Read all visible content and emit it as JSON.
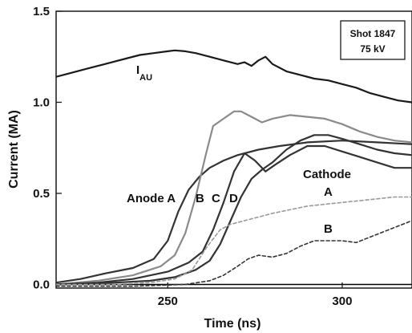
{
  "chart_data": {
    "type": "line",
    "title": "",
    "xlabel": "Time (ns)",
    "ylabel": "Current (MA)",
    "xlim": [
      218,
      320
    ],
    "ylim": [
      -0.02,
      1.5
    ],
    "x_ticks": [
      250,
      300
    ],
    "y_ticks": [
      0.0,
      0.5,
      1.0,
      1.5
    ],
    "y_tick_labels": [
      "0.0",
      "0.5",
      "1.0",
      "1.5"
    ],
    "grid": false,
    "legend": "none",
    "annotation_box": {
      "line1": "Shot 1847",
      "line2": "75 kV"
    },
    "series": [
      {
        "name": "I_AU",
        "label_main": "I",
        "label_sub": "AU",
        "color": "#1a1a1a",
        "dash": "solid",
        "points": [
          [
            218,
            1.14
          ],
          [
            222,
            1.16
          ],
          [
            226,
            1.18
          ],
          [
            230,
            1.2
          ],
          [
            234,
            1.22
          ],
          [
            238,
            1.24
          ],
          [
            242,
            1.26
          ],
          [
            246,
            1.27
          ],
          [
            250,
            1.28
          ],
          [
            252,
            1.285
          ],
          [
            255,
            1.28
          ],
          [
            258,
            1.27
          ],
          [
            262,
            1.25
          ],
          [
            266,
            1.23
          ],
          [
            270,
            1.21
          ],
          [
            272,
            1.22
          ],
          [
            274,
            1.2
          ],
          [
            276,
            1.23
          ],
          [
            278,
            1.25
          ],
          [
            280,
            1.21
          ],
          [
            284,
            1.17
          ],
          [
            288,
            1.15
          ],
          [
            292,
            1.13
          ],
          [
            296,
            1.12
          ],
          [
            300,
            1.1
          ],
          [
            304,
            1.08
          ],
          [
            308,
            1.05
          ],
          [
            312,
            1.03
          ],
          [
            316,
            1.01
          ],
          [
            320,
            1.0
          ]
        ]
      },
      {
        "name": "Anode A",
        "label": "Anode A",
        "color": "#333333",
        "dash": "solid",
        "points": [
          [
            218,
            0.01
          ],
          [
            225,
            0.03
          ],
          [
            232,
            0.06
          ],
          [
            240,
            0.09
          ],
          [
            246,
            0.14
          ],
          [
            250,
            0.24
          ],
          [
            253,
            0.4
          ],
          [
            256,
            0.52
          ],
          [
            259,
            0.59
          ],
          [
            262,
            0.64
          ],
          [
            266,
            0.68
          ],
          [
            270,
            0.71
          ],
          [
            276,
            0.74
          ],
          [
            282,
            0.76
          ],
          [
            290,
            0.78
          ],
          [
            300,
            0.79
          ],
          [
            310,
            0.78
          ],
          [
            320,
            0.77
          ]
        ]
      },
      {
        "name": "Anode B",
        "label": "B",
        "color": "#8a8a8a",
        "dash": "solid",
        "points": [
          [
            218,
            0.0
          ],
          [
            230,
            0.02
          ],
          [
            240,
            0.05
          ],
          [
            248,
            0.1
          ],
          [
            252,
            0.16
          ],
          [
            255,
            0.28
          ],
          [
            258,
            0.48
          ],
          [
            261,
            0.72
          ],
          [
            263,
            0.87
          ],
          [
            266,
            0.91
          ],
          [
            269,
            0.95
          ],
          [
            271,
            0.95
          ],
          [
            274,
            0.92
          ],
          [
            277,
            0.89
          ],
          [
            280,
            0.91
          ],
          [
            285,
            0.93
          ],
          [
            290,
            0.92
          ],
          [
            295,
            0.91
          ],
          [
            300,
            0.88
          ],
          [
            305,
            0.84
          ],
          [
            310,
            0.81
          ],
          [
            315,
            0.79
          ],
          [
            320,
            0.78
          ]
        ]
      },
      {
        "name": "Anode C",
        "label": "C",
        "color": "#333333",
        "dash": "solid",
        "points": [
          [
            218,
            0.0
          ],
          [
            230,
            0.01
          ],
          [
            240,
            0.03
          ],
          [
            250,
            0.07
          ],
          [
            256,
            0.12
          ],
          [
            260,
            0.18
          ],
          [
            263,
            0.3
          ],
          [
            266,
            0.45
          ],
          [
            269,
            0.62
          ],
          [
            272,
            0.72
          ],
          [
            275,
            0.68
          ],
          [
            278,
            0.62
          ],
          [
            281,
            0.66
          ],
          [
            285,
            0.71
          ],
          [
            290,
            0.76
          ],
          [
            295,
            0.76
          ],
          [
            300,
            0.73
          ],
          [
            305,
            0.7
          ],
          [
            310,
            0.67
          ],
          [
            315,
            0.64
          ],
          [
            320,
            0.64
          ]
        ]
      },
      {
        "name": "Anode D",
        "label": "D",
        "color": "#333333",
        "dash": "solid",
        "points": [
          [
            218,
            0.0
          ],
          [
            235,
            0.01
          ],
          [
            245,
            0.02
          ],
          [
            252,
            0.04
          ],
          [
            258,
            0.08
          ],
          [
            262,
            0.13
          ],
          [
            265,
            0.22
          ],
          [
            268,
            0.35
          ],
          [
            271,
            0.48
          ],
          [
            274,
            0.58
          ],
          [
            277,
            0.63
          ],
          [
            280,
            0.67
          ],
          [
            284,
            0.74
          ],
          [
            288,
            0.79
          ],
          [
            292,
            0.82
          ],
          [
            296,
            0.82
          ],
          [
            300,
            0.8
          ],
          [
            305,
            0.77
          ],
          [
            310,
            0.74
          ],
          [
            315,
            0.72
          ],
          [
            320,
            0.71
          ]
        ]
      },
      {
        "name": "Cathode A",
        "label": "A",
        "color": "#999999",
        "dash": "dashed",
        "points": [
          [
            218,
            0.0
          ],
          [
            235,
            0.0
          ],
          [
            245,
            0.01
          ],
          [
            252,
            0.03
          ],
          [
            257,
            0.08
          ],
          [
            261,
            0.2
          ],
          [
            265,
            0.3
          ],
          [
            268,
            0.33
          ],
          [
            272,
            0.35
          ],
          [
            276,
            0.37
          ],
          [
            280,
            0.39
          ],
          [
            285,
            0.41
          ],
          [
            290,
            0.43
          ],
          [
            295,
            0.44
          ],
          [
            300,
            0.45
          ],
          [
            305,
            0.46
          ],
          [
            310,
            0.47
          ],
          [
            315,
            0.48
          ],
          [
            320,
            0.48
          ]
        ]
      },
      {
        "name": "Cathode B",
        "label": "B",
        "color": "#333333",
        "dash": "dashed",
        "points": [
          [
            218,
            -0.01
          ],
          [
            240,
            -0.01
          ],
          [
            255,
            0.0
          ],
          [
            262,
            0.02
          ],
          [
            266,
            0.05
          ],
          [
            270,
            0.1
          ],
          [
            273,
            0.14
          ],
          [
            276,
            0.16
          ],
          [
            280,
            0.15
          ],
          [
            284,
            0.17
          ],
          [
            288,
            0.21
          ],
          [
            292,
            0.24
          ],
          [
            296,
            0.24
          ],
          [
            300,
            0.24
          ],
          [
            304,
            0.23
          ],
          [
            308,
            0.26
          ],
          [
            312,
            0.29
          ],
          [
            316,
            0.32
          ],
          [
            320,
            0.35
          ]
        ]
      }
    ],
    "cathode_label": "Cathode"
  }
}
